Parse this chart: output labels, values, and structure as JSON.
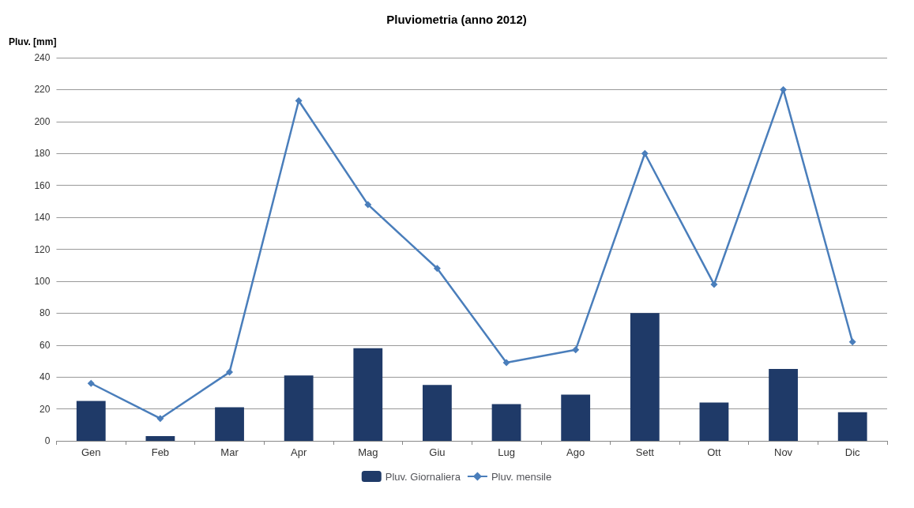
{
  "chart_data": {
    "type": "bar",
    "title": "Pluviometria (anno 2012)",
    "ylabel": "Pluv. [mm]",
    "categories": [
      "Gen",
      "Feb",
      "Mar",
      "Apr",
      "Mag",
      "Giu",
      "Lug",
      "Ago",
      "Sett",
      "Ott",
      "Nov",
      "Dic"
    ],
    "series": [
      {
        "name": "Pluv. Giornaliera",
        "color": "#1f3a68",
        "values": [
          25,
          3,
          21,
          41,
          58,
          35,
          23,
          29,
          80,
          24,
          45,
          18
        ]
      },
      {
        "name": "Pluv. mensile",
        "type": "line",
        "color": "#4a7ebb",
        "marker": "diamond",
        "values": [
          36,
          14,
          43,
          213,
          148,
          108,
          49,
          57,
          180,
          98,
          220,
          62
        ]
      }
    ],
    "ylim": [
      0,
      240
    ],
    "yticks": [
      0,
      20,
      40,
      60,
      80,
      100,
      120,
      140,
      160,
      180,
      200,
      220,
      240
    ],
    "grid": "y",
    "legend": "bottom"
  }
}
